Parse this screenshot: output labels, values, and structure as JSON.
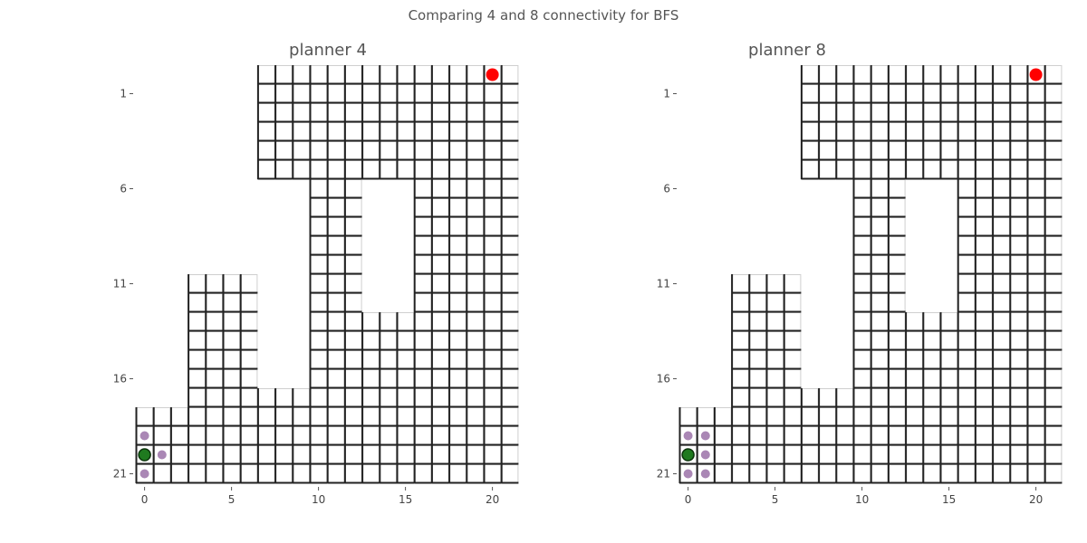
{
  "figure": {
    "suptitle": "Comparing 4 and 8 connectivity for BFS"
  },
  "grid": {
    "cols": 22,
    "rows": 22,
    "x_ticks": [
      0,
      5,
      10,
      15,
      20
    ],
    "y_ticks": [
      1,
      6,
      11,
      16,
      21
    ],
    "free_rows": [
      [
        7,
        21
      ],
      [
        7,
        21
      ],
      [
        7,
        21
      ],
      [
        7,
        21
      ],
      [
        7,
        21
      ],
      [
        7,
        21
      ],
      [
        10,
        12,
        16,
        21
      ],
      [
        10,
        12,
        16,
        21
      ],
      [
        10,
        12,
        16,
        21
      ],
      [
        10,
        12,
        16,
        21
      ],
      [
        10,
        12,
        16,
        21
      ],
      [
        3,
        6,
        10,
        12,
        16,
        21
      ],
      [
        3,
        6,
        10,
        12,
        16,
        21
      ],
      [
        3,
        6,
        10,
        21
      ],
      [
        3,
        6,
        10,
        21
      ],
      [
        3,
        6,
        10,
        21
      ],
      [
        3,
        6,
        10,
        21
      ],
      [
        3,
        21
      ],
      [
        0,
        21
      ],
      [
        0,
        21
      ],
      [
        0,
        21
      ],
      [
        0,
        21
      ]
    ],
    "wall_pattern": "regular",
    "colors": {
      "start": "#1f7a1f",
      "goal": "#ff0000",
      "explored": "#9b72a8",
      "grid_line": "#222222"
    }
  },
  "panels": [
    {
      "title": "planner 4",
      "goal": [
        20,
        0
      ],
      "start": [
        0,
        20
      ],
      "explored": [
        [
          0,
          19
        ],
        [
          0,
          21
        ],
        [
          1,
          20
        ]
      ]
    },
    {
      "title": "planner 8",
      "goal": [
        20,
        0
      ],
      "start": [
        0,
        20
      ],
      "explored": [
        [
          0,
          19
        ],
        [
          0,
          21
        ],
        [
          1,
          19
        ],
        [
          1,
          20
        ],
        [
          1,
          21
        ]
      ]
    }
  ]
}
